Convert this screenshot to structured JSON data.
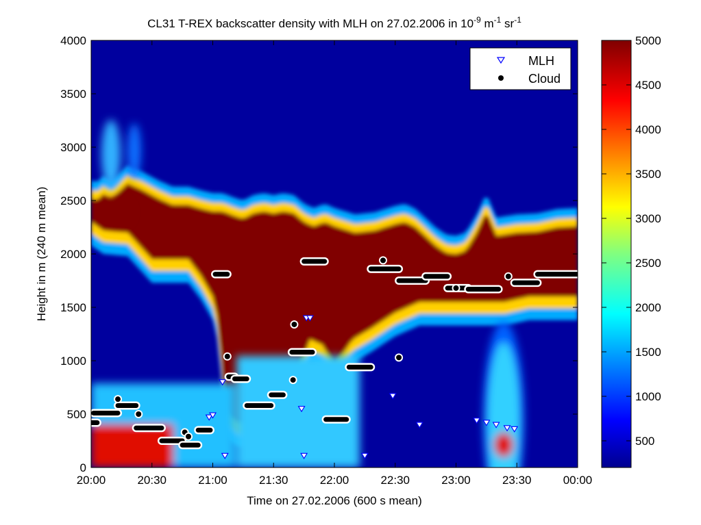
{
  "chart_data": {
    "type": "heatmap",
    "title_main": "CL31 T-REX backscatter density with MLH on 27.02.2006 in 10",
    "title_exp1": "-9",
    "title_mid": " m",
    "title_exp2": "-1",
    "title_mid2": " sr",
    "title_exp3": "-1",
    "xlabel": "Time on 27.02.2006 (600 s mean)",
    "ylabel": "Height in m (240 m mean)",
    "x_unit": "hours",
    "xlim": [
      20,
      24
    ],
    "ylim": [
      0,
      4000
    ],
    "x_ticks": [
      20,
      20.5,
      21,
      21.5,
      22,
      22.5,
      23,
      23.5,
      24
    ],
    "x_tick_labels": [
      "20:00",
      "20:30",
      "21:00",
      "21:30",
      "22:00",
      "22:30",
      "23:00",
      "23:30",
      "00:00"
    ],
    "y_ticks": [
      0,
      500,
      1000,
      1500,
      2000,
      2500,
      3000,
      3500,
      4000
    ],
    "y_tick_labels": [
      "0",
      "500",
      "1000",
      "1500",
      "2000",
      "2500",
      "3000",
      "3500",
      "4000"
    ],
    "colorbar": {
      "colormap": "jet",
      "range": [
        200,
        5000
      ],
      "ticks": [
        500,
        1000,
        1500,
        2000,
        2500,
        3000,
        3500,
        4000,
        4500,
        5000
      ],
      "tick_labels": [
        "500",
        "1000",
        "1500",
        "2000",
        "2500",
        "3000",
        "3500",
        "4000",
        "4500",
        "5000"
      ]
    },
    "legend": {
      "placement": "top-right",
      "entries": [
        {
          "label": "MLH",
          "marker": "triangle-down",
          "color": "#0000ff"
        },
        {
          "label": "Cloud",
          "marker": "circle",
          "color": "#000000"
        }
      ]
    },
    "layer_top": {
      "x": [
        20.0,
        20.05,
        20.1,
        20.17,
        20.3,
        20.42,
        20.55,
        20.67,
        20.8,
        20.92,
        21.0,
        21.08,
        21.17,
        21.25,
        21.33,
        21.42,
        21.5,
        21.58,
        21.67,
        21.75,
        21.83,
        21.92,
        22.0,
        22.17,
        22.33,
        22.5,
        22.58,
        22.67,
        22.83,
        22.92,
        23.0,
        23.08,
        23.17,
        23.25,
        23.33,
        23.5,
        23.67,
        23.83,
        24.0
      ],
      "y": [
        2520,
        2500,
        2560,
        2520,
        2660,
        2600,
        2520,
        2460,
        2460,
        2420,
        2400,
        2400,
        2360,
        2330,
        2380,
        2400,
        2380,
        2400,
        2380,
        2300,
        2260,
        2300,
        2260,
        2200,
        2220,
        2280,
        2300,
        2250,
        2080,
        2010,
        2000,
        2030,
        2200,
        2400,
        2170,
        2200,
        2210,
        2250,
        2260
      ]
    },
    "layer_bottom": {
      "x": [
        20.0,
        20.1,
        20.3,
        20.5,
        20.6,
        20.7,
        20.8,
        20.9,
        21.0,
        21.05,
        21.1,
        21.2,
        21.35,
        21.5,
        21.6,
        21.7,
        21.8,
        21.9,
        22.0,
        22.15,
        22.3,
        22.5,
        22.7,
        22.85,
        23.0,
        23.1,
        23.2,
        23.3,
        23.4,
        23.6,
        23.7,
        24.0
      ],
      "y": [
        2300,
        2220,
        2200,
        1950,
        1950,
        1950,
        1950,
        1800,
        1600,
        1350,
        500,
        420,
        400,
        400,
        500,
        900,
        1200,
        1150,
        950,
        1200,
        1300,
        1450,
        1550,
        1550,
        1550,
        1550,
        1550,
        1550,
        1550,
        1600,
        1600,
        1600
      ]
    },
    "mlh": [
      {
        "x": 20.97,
        "y": 470
      },
      {
        "x": 21.0,
        "y": 490
      },
      {
        "x": 21.08,
        "y": 800
      },
      {
        "x": 21.1,
        "y": 110
      },
      {
        "x": 21.73,
        "y": 550
      },
      {
        "x": 21.75,
        "y": 110
      },
      {
        "x": 21.77,
        "y": 1400
      },
      {
        "x": 21.8,
        "y": 1400
      },
      {
        "x": 22.25,
        "y": 110
      },
      {
        "x": 22.48,
        "y": 670
      },
      {
        "x": 22.7,
        "y": 400
      },
      {
        "x": 23.17,
        "y": 440
      },
      {
        "x": 23.25,
        "y": 420
      },
      {
        "x": 23.33,
        "y": 400
      },
      {
        "x": 23.42,
        "y": 370
      },
      {
        "x": 23.48,
        "y": 360
      }
    ],
    "cloud_segments": [
      [
        20.0,
        20.05,
        420
      ],
      [
        20.02,
        20.22,
        510
      ],
      [
        20.22,
        20.37,
        580
      ],
      [
        20.37,
        20.58,
        370
      ],
      [
        20.58,
        20.75,
        250
      ],
      [
        20.75,
        20.88,
        210
      ],
      [
        20.88,
        20.98,
        350
      ],
      [
        21.02,
        21.12,
        1810
      ],
      [
        21.13,
        21.18,
        850
      ],
      [
        21.18,
        21.28,
        830
      ],
      [
        21.28,
        21.48,
        580
      ],
      [
        21.48,
        21.58,
        680
      ],
      [
        21.65,
        21.82,
        1080
      ],
      [
        21.75,
        21.92,
        1930
      ],
      [
        21.93,
        22.1,
        450
      ],
      [
        22.12,
        22.3,
        940
      ],
      [
        22.3,
        22.53,
        1860
      ],
      [
        22.53,
        22.75,
        1750
      ],
      [
        22.75,
        22.93,
        1790
      ],
      [
        22.93,
        23.1,
        1680
      ],
      [
        23.1,
        23.35,
        1670
      ],
      [
        23.48,
        23.67,
        1730
      ],
      [
        23.67,
        24.0,
        1810
      ]
    ],
    "cloud_points": [
      {
        "x": 20.22,
        "y": 640
      },
      {
        "x": 20.39,
        "y": 500
      },
      {
        "x": 20.77,
        "y": 330
      },
      {
        "x": 20.8,
        "y": 290
      },
      {
        "x": 21.12,
        "y": 1040
      },
      {
        "x": 21.66,
        "y": 820
      },
      {
        "x": 21.67,
        "y": 1340
      },
      {
        "x": 22.4,
        "y": 1940
      },
      {
        "x": 22.53,
        "y": 1030
      },
      {
        "x": 23.0,
        "y": 1680
      },
      {
        "x": 23.43,
        "y": 1790
      }
    ]
  }
}
